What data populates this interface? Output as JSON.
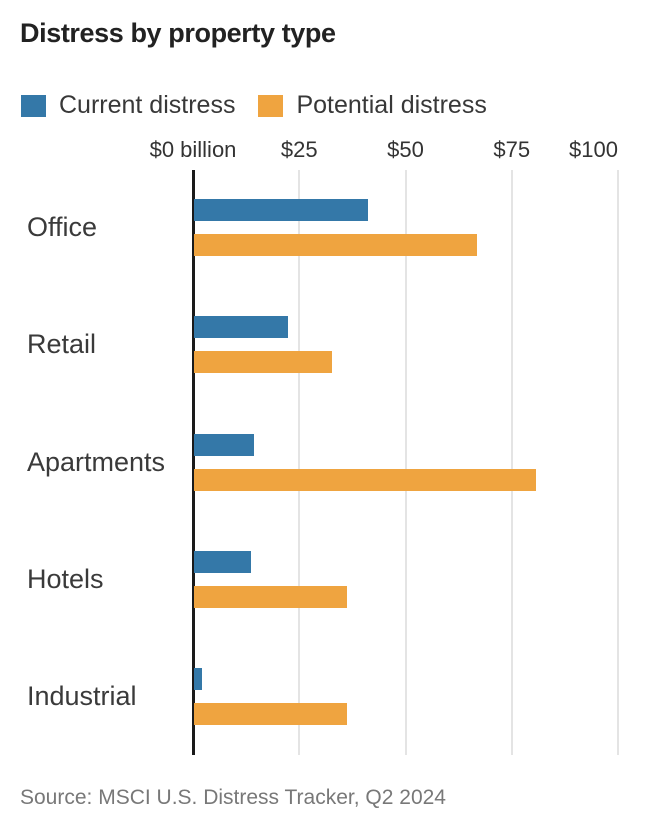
{
  "title": "Distress by property type",
  "legend": {
    "items": [
      {
        "label": "Current distress",
        "color": "#3478a8"
      },
      {
        "label": "Potential distress",
        "color": "#efa440"
      }
    ]
  },
  "source": "Source: MSCI U.S. Distress Tracker, Q2 2024",
  "chart_data": {
    "type": "bar",
    "orientation": "horizontal",
    "title": "Distress by property type",
    "categories": [
      "Office",
      "Retail",
      "Apartments",
      "Hotels",
      "Industrial"
    ],
    "series": [
      {
        "name": "Current distress",
        "color": "#3478a8",
        "values": [
          41,
          22,
          14,
          13.5,
          1.8
        ]
      },
      {
        "name": "Potential distress",
        "color": "#efa440",
        "values": [
          66.5,
          32.5,
          80.5,
          36,
          36
        ]
      }
    ],
    "x_axis": {
      "unit": "billion",
      "ticks": [
        0,
        25,
        50,
        75,
        100
      ],
      "tick_labels": [
        "$0 billion",
        "$25",
        "$50",
        "$75",
        "$100"
      ],
      "range": [
        0,
        107
      ]
    },
    "grid": "vertical",
    "legend_position": "top",
    "source": "Source: MSCI U.S. Distress Tracker, Q2 2024"
  }
}
